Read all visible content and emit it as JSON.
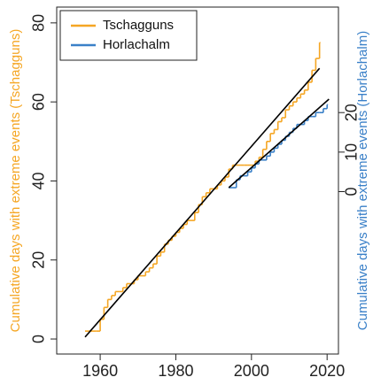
{
  "chart_data": {
    "type": "step",
    "y_label": "Cumulative days with extreme events (Tschagguns)",
    "y2_label": "Cumulative days with extreme events (Horlachalm)",
    "xlim": [
      1948.5,
      2023
    ],
    "xticks": [
      1960,
      1980,
      2000,
      2020
    ],
    "ylim": [
      -3.8,
      84
    ],
    "yticks": [
      0,
      20,
      40,
      60,
      80
    ],
    "y2lim": [
      -41.1,
      46.7
    ],
    "y2ticks": [
      0,
      10,
      20
    ],
    "legend": "top-left",
    "series": [
      {
        "name": "Tschagguns",
        "color": "#f5a623",
        "x": [
          1956,
          1957,
          1958,
          1959,
          1960,
          1961,
          1962,
          1963,
          1964,
          1965,
          1966,
          1967,
          1968,
          1969,
          1970,
          1971,
          1972,
          1973,
          1974,
          1975,
          1976,
          1977,
          1978,
          1979,
          1980,
          1981,
          1982,
          1983,
          1984,
          1985,
          1986,
          1987,
          1988,
          1989,
          1990,
          1991,
          1992,
          1993,
          1994,
          1995,
          1996,
          1997,
          1998,
          1999,
          2000,
          2001,
          2002,
          2003,
          2004,
          2005,
          2006,
          2007,
          2008,
          2009,
          2010,
          2011,
          2012,
          2013,
          2014,
          2015,
          2016,
          2017,
          2018
        ],
        "values": [
          2,
          2,
          2,
          2,
          5,
          8,
          10,
          11,
          12,
          12,
          13,
          14,
          14,
          15,
          16,
          16,
          17,
          18,
          19,
          21,
          22,
          24,
          25,
          26,
          27,
          28,
          29,
          30,
          30,
          32,
          34,
          36,
          37,
          38,
          38,
          39,
          40,
          41,
          43,
          44,
          44,
          44,
          44,
          44,
          44,
          45,
          46,
          48,
          50,
          52,
          53,
          55,
          56,
          58,
          59,
          60,
          61,
          62,
          63,
          65,
          68,
          71,
          75
        ]
      },
      {
        "name": "Horlachalm",
        "color": "#3a80c8",
        "axis": "y2",
        "x": [
          1994,
          1995,
          1996,
          1997,
          1998,
          1999,
          2000,
          2001,
          2002,
          2003,
          2004,
          2005,
          2006,
          2007,
          2008,
          2009,
          2010,
          2011,
          2012,
          2013,
          2014,
          2015,
          2016,
          2017,
          2018,
          2019,
          2020
        ],
        "values": [
          1,
          1,
          3,
          4,
          4,
          5,
          6,
          7,
          8,
          8,
          9,
          10,
          11,
          12,
          13,
          14,
          15,
          16,
          17,
          17,
          18,
          19,
          19,
          20,
          20,
          21,
          22
        ]
      }
    ],
    "trend": [
      {
        "color": "#000000",
        "x": [
          1956,
          2018
        ],
        "values": [
          0.5,
          68.5
        ]
      },
      {
        "color": "#000000",
        "axis": "y2",
        "x": [
          1994,
          2020.5
        ],
        "values": [
          1,
          23.4
        ]
      }
    ]
  }
}
